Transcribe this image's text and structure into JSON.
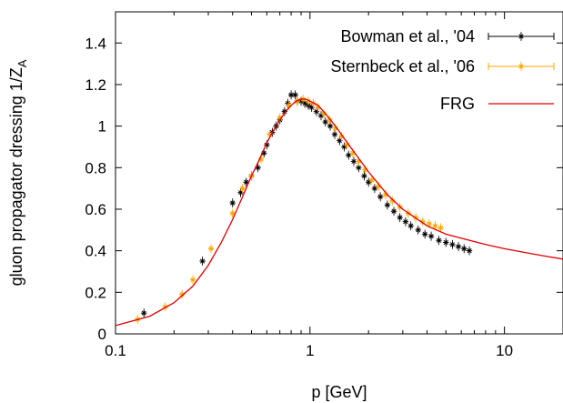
{
  "chart_data": {
    "type": "scatter",
    "xlabel": "p [GeV]",
    "ylabel": "gluon propagator dressing 1/Z",
    "ylabel_subscript": "A",
    "x_scale": "log",
    "xlim": [
      0.1,
      20
    ],
    "ylim": [
      0,
      1.55
    ],
    "x_ticks": [
      0.1,
      1,
      10
    ],
    "x_tick_labels": [
      "0.1",
      "1",
      "10"
    ],
    "y_ticks": [
      0,
      0.2,
      0.4,
      0.6,
      0.8,
      1,
      1.2,
      1.4
    ],
    "y_tick_labels": [
      "0",
      "0.2",
      "0.4",
      "0.6",
      "0.8",
      "1",
      "1.2",
      "1.4"
    ],
    "grid": false,
    "legend_position": "top-right",
    "series": [
      {
        "name": "Bowman et al., '04",
        "kind": "points-with-errorbars",
        "color": "#000000",
        "points": [
          [
            0.14,
            0.1
          ],
          [
            0.28,
            0.35
          ],
          [
            0.4,
            0.63
          ],
          [
            0.44,
            0.68
          ],
          [
            0.47,
            0.73
          ],
          [
            0.5,
            0.76
          ],
          [
            0.54,
            0.8
          ],
          [
            0.58,
            0.87
          ],
          [
            0.6,
            0.91
          ],
          [
            0.64,
            0.97
          ],
          [
            0.67,
            1.0
          ],
          [
            0.7,
            1.03
          ],
          [
            0.74,
            1.07
          ],
          [
            0.77,
            1.11
          ],
          [
            0.8,
            1.15
          ],
          [
            0.84,
            1.15
          ],
          [
            0.86,
            1.12
          ],
          [
            0.9,
            1.12
          ],
          [
            0.94,
            1.11
          ],
          [
            0.98,
            1.1
          ],
          [
            1.02,
            1.09
          ],
          [
            1.08,
            1.07
          ],
          [
            1.14,
            1.05
          ],
          [
            1.2,
            1.02
          ],
          [
            1.27,
            1.0
          ],
          [
            1.34,
            0.96
          ],
          [
            1.42,
            0.93
          ],
          [
            1.5,
            0.9
          ],
          [
            1.58,
            0.86
          ],
          [
            1.68,
            0.83
          ],
          [
            1.78,
            0.8
          ],
          [
            1.9,
            0.76
          ],
          [
            2.0,
            0.73
          ],
          [
            2.15,
            0.7
          ],
          [
            2.3,
            0.66
          ],
          [
            2.5,
            0.62
          ],
          [
            2.7,
            0.59
          ],
          [
            2.9,
            0.56
          ],
          [
            3.1,
            0.54
          ],
          [
            3.3,
            0.52
          ],
          [
            3.6,
            0.5
          ],
          [
            3.9,
            0.48
          ],
          [
            4.2,
            0.47
          ],
          [
            4.6,
            0.45
          ],
          [
            5.0,
            0.44
          ],
          [
            5.4,
            0.43
          ],
          [
            5.8,
            0.42
          ],
          [
            6.2,
            0.41
          ],
          [
            6.6,
            0.4
          ]
        ]
      },
      {
        "name": "Sternbeck et al., '06",
        "kind": "points-with-errorbars",
        "color": "#ffa500",
        "points": [
          [
            0.13,
            0.07
          ],
          [
            0.18,
            0.13
          ],
          [
            0.22,
            0.19
          ],
          [
            0.25,
            0.26
          ],
          [
            0.31,
            0.41
          ],
          [
            0.4,
            0.58
          ],
          [
            0.45,
            0.7
          ],
          [
            0.5,
            0.76
          ],
          [
            0.56,
            0.84
          ],
          [
            0.62,
            0.96
          ],
          [
            0.7,
            1.04
          ],
          [
            0.78,
            1.1
          ],
          [
            0.86,
            1.12
          ],
          [
            0.92,
            1.13
          ],
          [
            0.98,
            1.12
          ],
          [
            1.04,
            1.11
          ],
          [
            1.1,
            1.09
          ],
          [
            1.18,
            1.06
          ],
          [
            1.26,
            1.03
          ],
          [
            1.35,
            0.99
          ],
          [
            1.45,
            0.95
          ],
          [
            1.55,
            0.91
          ],
          [
            1.66,
            0.87
          ],
          [
            1.78,
            0.83
          ],
          [
            1.92,
            0.79
          ],
          [
            2.08,
            0.74
          ],
          [
            2.25,
            0.71
          ],
          [
            2.45,
            0.67
          ],
          [
            2.65,
            0.64
          ],
          [
            2.9,
            0.61
          ],
          [
            3.2,
            0.58
          ],
          [
            3.5,
            0.56
          ],
          [
            3.8,
            0.54
          ],
          [
            4.1,
            0.53
          ],
          [
            4.4,
            0.52
          ],
          [
            4.7,
            0.51
          ]
        ]
      },
      {
        "name": "FRG",
        "kind": "line",
        "color": "#e00000",
        "points": [
          [
            0.1,
            0.04
          ],
          [
            0.15,
            0.085
          ],
          [
            0.2,
            0.15
          ],
          [
            0.25,
            0.23
          ],
          [
            0.3,
            0.33
          ],
          [
            0.35,
            0.44
          ],
          [
            0.4,
            0.55
          ],
          [
            0.45,
            0.66
          ],
          [
            0.5,
            0.76
          ],
          [
            0.55,
            0.84
          ],
          [
            0.6,
            0.92
          ],
          [
            0.65,
            0.98
          ],
          [
            0.7,
            1.03
          ],
          [
            0.75,
            1.07
          ],
          [
            0.8,
            1.1
          ],
          [
            0.85,
            1.12
          ],
          [
            0.9,
            1.13
          ],
          [
            0.95,
            1.13
          ],
          [
            1.0,
            1.12
          ],
          [
            1.1,
            1.1
          ],
          [
            1.2,
            1.06
          ],
          [
            1.3,
            1.02
          ],
          [
            1.4,
            0.98
          ],
          [
            1.5,
            0.94
          ],
          [
            1.7,
            0.87
          ],
          [
            2.0,
            0.78
          ],
          [
            2.5,
            0.67
          ],
          [
            3.0,
            0.6
          ],
          [
            4.0,
            0.52
          ],
          [
            5.0,
            0.48
          ],
          [
            6.0,
            0.46
          ],
          [
            8.0,
            0.43
          ],
          [
            10.0,
            0.41
          ],
          [
            13.0,
            0.39
          ],
          [
            16.0,
            0.375
          ],
          [
            20.0,
            0.36
          ]
        ]
      }
    ]
  }
}
